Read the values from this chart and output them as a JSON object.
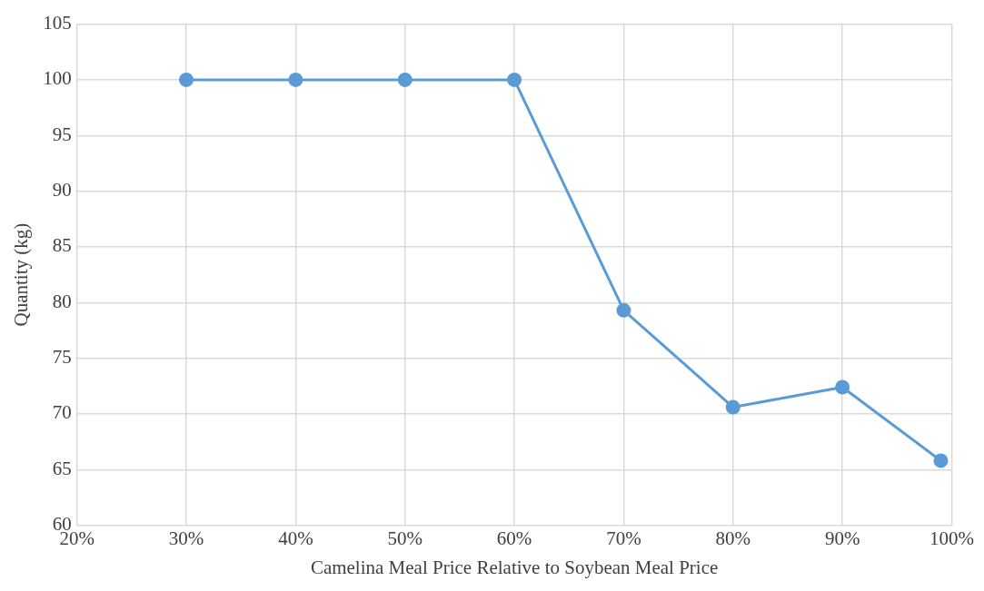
{
  "chart_data": {
    "type": "line",
    "xlabel": "Camelina Meal Price Relative to Soybean Meal Price",
    "ylabel": "Quantity (kg)",
    "x": [
      30,
      40,
      50,
      60,
      70,
      80,
      90,
      99
    ],
    "series": [
      {
        "color": "#5b9bd5",
        "values": [
          100,
          100,
          100,
          100,
          79.3,
          70.6,
          72.4,
          65.8
        ]
      }
    ],
    "xlim": [
      20,
      100
    ],
    "xticks": [
      {
        "value": 20,
        "label": "20%"
      },
      {
        "value": 30,
        "label": "30%"
      },
      {
        "value": 40,
        "label": "40%"
      },
      {
        "value": 50,
        "label": "50%"
      },
      {
        "value": 60,
        "label": "60%"
      },
      {
        "value": 70,
        "label": "70%"
      },
      {
        "value": 80,
        "label": "80%"
      },
      {
        "value": 90,
        "label": "90%"
      },
      {
        "value": 100,
        "label": "100%"
      }
    ],
    "ylim": [
      60,
      105
    ],
    "yticks": [
      60,
      65,
      70,
      75,
      80,
      85,
      90,
      95,
      100,
      105
    ],
    "grid": true,
    "legend": false,
    "marker": "circle",
    "line_style": "solid"
  }
}
